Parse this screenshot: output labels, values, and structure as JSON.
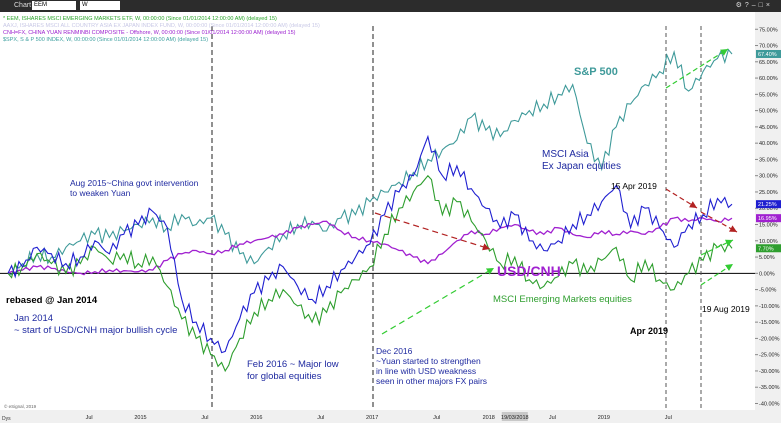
{
  "window": {
    "title": "Chart",
    "symbol": "EEM",
    "interval": "W",
    "toolbar_icons": [
      "settings-icon",
      "help-icon",
      "minimize-icon",
      "maximize-icon",
      "close-icon"
    ]
  },
  "legend": [
    {
      "text": "* EEM, ISHARES MSCI EMERGING MARKETS ETF, W, 00:00:00 (Since 01/01/2014 12:00:00 AM) (delayed 15)",
      "color": "#2aa52a"
    },
    {
      "text": "AAXJ, ISHARES MSCI ALL COUNTRY ASIA EX JAPAN INDEX FUND, W, 00:00:00 (Since 01/01/2014 12:00:00 AM) (delayed 15)",
      "color": "#c8c8e6"
    },
    {
      "text": "CNH=FX, CHINA YUAN RENMINBI COMPOSITE - Offshore, W, 00:00:00 (Since 01/01/2014 12:00:00 AM) (delayed 15)",
      "color": "#9b1fcf"
    },
    {
      "text": "$SPX, S & P 500 INDEX, W, 00:00:00 (Since 01/01/2014 12:00:00 AM) (delayed 15)",
      "color": "#3fa0a0"
    }
  ],
  "annotations": {
    "aug2015": [
      "Aug 2015~China govt intervention",
      "to weaken Yuan"
    ],
    "rebased": "rebased @ Jan 2014",
    "jan2014": [
      "Jan 2014",
      "~ start of USD/CNH major bullish cycle"
    ],
    "feb2016": [
      "Feb 2016 ~ Major low",
      "for global equities"
    ],
    "dec2016": [
      "Dec 2016",
      "~Yuan started to strengthen",
      "in line with USD weakness",
      "seen in other majors FX pairs"
    ],
    "msci_asia": [
      "MSCI Asia",
      "Ex Japan equities"
    ],
    "sp500": "S&P 500",
    "usdcnh": "USD/CNH",
    "msci_em": "MSCI Emerging Markets equities",
    "apr15_2019": "15 Apr 2019",
    "apr2019": "Apr 2019",
    "aug19_2019": "19 Aug 2019",
    "copyright": "© eSignal, 2019",
    "corner": "Dys"
  },
  "colors": {
    "sp500": "#3f9a9a",
    "asia": "#1f1fd0",
    "em": "#2e9e2e",
    "cnh": "#a020d0",
    "annotation_blue": "#1f2aa0",
    "annotation_green": "#2e9e2e",
    "arrow_red": "#b22222",
    "arrow_green": "#33cc33"
  },
  "chart_data": {
    "type": "line",
    "title": "",
    "xlabel": "",
    "ylabel": "",
    "x_ticks": [
      "Jul",
      "2015",
      "Jul",
      "2016",
      "Jul",
      "2017",
      "Jul",
      "2018",
      "19/03/2018",
      "Jul",
      "2019",
      "Jul"
    ],
    "ylim": [
      -42,
      76
    ],
    "y_ticks": [
      "75.00%",
      "70.00%",
      "65.00%",
      "60.00%",
      "55.00%",
      "50.00%",
      "45.00%",
      "40.00%",
      "35.00%",
      "30.00%",
      "25.00%",
      "20.00%",
      "15.00%",
      "10.00%",
      "5.00%",
      "0.00%",
      "-5.00%",
      "-10.00%",
      "-15.00%",
      "-20.00%",
      "-25.00%",
      "-30.00%",
      "-35.00%",
      "-40.00%"
    ],
    "last_value_badges": [
      {
        "text": "67.40%",
        "series": "S&P 500"
      },
      {
        "text": "21.25%",
        "series": "MSCI Asia Ex Japan equities"
      },
      {
        "text": "16.95%",
        "series": "USD/CNH"
      },
      {
        "text": "7.70%",
        "series": "MSCI Emerging Markets equities"
      }
    ],
    "series": [
      {
        "name": "S&P 500",
        "color": "#3f9a9a",
        "points": [
          [
            0,
            0
          ],
          [
            0.02,
            3
          ],
          [
            0.04,
            6
          ],
          [
            0.06,
            5
          ],
          [
            0.08,
            8
          ],
          [
            0.1,
            10
          ],
          [
            0.12,
            12
          ],
          [
            0.14,
            11
          ],
          [
            0.16,
            13
          ],
          [
            0.18,
            15
          ],
          [
            0.2,
            17
          ],
          [
            0.22,
            14
          ],
          [
            0.24,
            18
          ],
          [
            0.26,
            15
          ],
          [
            0.28,
            17
          ],
          [
            0.3,
            12
          ],
          [
            0.32,
            6
          ],
          [
            0.34,
            3
          ],
          [
            0.36,
            8
          ],
          [
            0.38,
            12
          ],
          [
            0.4,
            15
          ],
          [
            0.42,
            16
          ],
          [
            0.44,
            13
          ],
          [
            0.46,
            17
          ],
          [
            0.48,
            18
          ],
          [
            0.5,
            22
          ],
          [
            0.52,
            25
          ],
          [
            0.54,
            28
          ],
          [
            0.56,
            31
          ],
          [
            0.58,
            35
          ],
          [
            0.6,
            38
          ],
          [
            0.62,
            41
          ],
          [
            0.64,
            48
          ],
          [
            0.66,
            44
          ],
          [
            0.68,
            42
          ],
          [
            0.7,
            47
          ],
          [
            0.72,
            50
          ],
          [
            0.74,
            52
          ],
          [
            0.76,
            55
          ],
          [
            0.78,
            58
          ],
          [
            0.8,
            40
          ],
          [
            0.82,
            32
          ],
          [
            0.84,
            45
          ],
          [
            0.86,
            52
          ],
          [
            0.88,
            58
          ],
          [
            0.9,
            62
          ],
          [
            0.92,
            68
          ],
          [
            0.94,
            56
          ],
          [
            0.96,
            62
          ],
          [
            0.98,
            66
          ],
          [
            1.0,
            67.4
          ]
        ]
      },
      {
        "name": "MSCI Asia Ex Japan equities",
        "color": "#1f1fd0",
        "points": [
          [
            0,
            0
          ],
          [
            0.02,
            2
          ],
          [
            0.04,
            8
          ],
          [
            0.06,
            6
          ],
          [
            0.08,
            3
          ],
          [
            0.1,
            5
          ],
          [
            0.12,
            10
          ],
          [
            0.14,
            6
          ],
          [
            0.16,
            12
          ],
          [
            0.18,
            15
          ],
          [
            0.2,
            19
          ],
          [
            0.22,
            14
          ],
          [
            0.24,
            -8
          ],
          [
            0.26,
            -15
          ],
          [
            0.28,
            -20
          ],
          [
            0.3,
            -24
          ],
          [
            0.32,
            -14
          ],
          [
            0.34,
            -6
          ],
          [
            0.36,
            -2
          ],
          [
            0.38,
            2
          ],
          [
            0.4,
            -4
          ],
          [
            0.42,
            -8
          ],
          [
            0.44,
            -4
          ],
          [
            0.46,
            1
          ],
          [
            0.48,
            5
          ],
          [
            0.5,
            9
          ],
          [
            0.52,
            18
          ],
          [
            0.54,
            25
          ],
          [
            0.56,
            30
          ],
          [
            0.58,
            42
          ],
          [
            0.6,
            30
          ],
          [
            0.62,
            33
          ],
          [
            0.64,
            26
          ],
          [
            0.66,
            20
          ],
          [
            0.68,
            14
          ],
          [
            0.7,
            18
          ],
          [
            0.72,
            10
          ],
          [
            0.74,
            7
          ],
          [
            0.76,
            10
          ],
          [
            0.78,
            15
          ],
          [
            0.8,
            18
          ],
          [
            0.82,
            22
          ],
          [
            0.84,
            27
          ],
          [
            0.86,
            14
          ],
          [
            0.88,
            20
          ],
          [
            0.9,
            14
          ],
          [
            0.92,
            8
          ],
          [
            0.94,
            15
          ],
          [
            0.96,
            18
          ],
          [
            0.98,
            23
          ],
          [
            1.0,
            21.25
          ]
        ]
      },
      {
        "name": "USD/CNH",
        "color": "#a020d0",
        "points": [
          [
            0,
            0
          ],
          [
            0.02,
            1
          ],
          [
            0.04,
            2
          ],
          [
            0.06,
            1.5
          ],
          [
            0.08,
            0.5
          ],
          [
            0.1,
            0
          ],
          [
            0.12,
            0.5
          ],
          [
            0.14,
            1
          ],
          [
            0.16,
            0.8
          ],
          [
            0.18,
            0.5
          ],
          [
            0.2,
            1
          ],
          [
            0.22,
            4
          ],
          [
            0.24,
            6
          ],
          [
            0.26,
            7
          ],
          [
            0.28,
            6
          ],
          [
            0.3,
            7
          ],
          [
            0.32,
            9
          ],
          [
            0.34,
            10
          ],
          [
            0.36,
            11
          ],
          [
            0.38,
            12
          ],
          [
            0.4,
            14
          ],
          [
            0.42,
            15
          ],
          [
            0.44,
            16
          ],
          [
            0.46,
            13
          ],
          [
            0.48,
            11
          ],
          [
            0.5,
            10
          ],
          [
            0.52,
            9
          ],
          [
            0.54,
            7
          ],
          [
            0.56,
            5
          ],
          [
            0.58,
            3
          ],
          [
            0.6,
            6
          ],
          [
            0.62,
            10
          ],
          [
            0.64,
            13
          ],
          [
            0.66,
            12
          ],
          [
            0.68,
            14
          ],
          [
            0.7,
            15
          ],
          [
            0.72,
            13
          ],
          [
            0.74,
            12
          ],
          [
            0.76,
            14
          ],
          [
            0.78,
            12
          ],
          [
            0.8,
            11
          ],
          [
            0.82,
            13
          ],
          [
            0.84,
            12
          ],
          [
            0.86,
            13
          ],
          [
            0.88,
            12
          ],
          [
            0.9,
            14
          ],
          [
            0.92,
            17
          ],
          [
            0.94,
            16
          ],
          [
            0.96,
            17
          ],
          [
            0.98,
            16
          ],
          [
            1.0,
            16.95
          ]
        ]
      },
      {
        "name": "MSCI Emerging Markets equities",
        "color": "#2e9e2e",
        "points": [
          [
            0,
            0
          ],
          [
            0.02,
            2
          ],
          [
            0.04,
            6
          ],
          [
            0.06,
            3
          ],
          [
            0.08,
            0
          ],
          [
            0.1,
            3
          ],
          [
            0.12,
            8
          ],
          [
            0.14,
            4
          ],
          [
            0.16,
            6
          ],
          [
            0.18,
            3
          ],
          [
            0.2,
            5
          ],
          [
            0.22,
            -4
          ],
          [
            0.24,
            -14
          ],
          [
            0.26,
            -20
          ],
          [
            0.28,
            -25
          ],
          [
            0.3,
            -30
          ],
          [
            0.32,
            -20
          ],
          [
            0.34,
            -12
          ],
          [
            0.36,
            -8
          ],
          [
            0.38,
            -5
          ],
          [
            0.4,
            -10
          ],
          [
            0.42,
            -15
          ],
          [
            0.44,
            -12
          ],
          [
            0.46,
            -6
          ],
          [
            0.48,
            -2
          ],
          [
            0.5,
            2
          ],
          [
            0.52,
            12
          ],
          [
            0.54,
            20
          ],
          [
            0.56,
            25
          ],
          [
            0.58,
            30
          ],
          [
            0.6,
            18
          ],
          [
            0.62,
            22
          ],
          [
            0.64,
            16
          ],
          [
            0.66,
            10
          ],
          [
            0.68,
            3
          ],
          [
            0.7,
            5
          ],
          [
            0.72,
            -2
          ],
          [
            0.74,
            -4
          ],
          [
            0.76,
            -1
          ],
          [
            0.78,
            3
          ],
          [
            0.8,
            0
          ],
          [
            0.82,
            4
          ],
          [
            0.84,
            8
          ],
          [
            0.86,
            -2
          ],
          [
            0.88,
            4
          ],
          [
            0.9,
            -2
          ],
          [
            0.92,
            -5
          ],
          [
            0.94,
            0
          ],
          [
            0.96,
            4
          ],
          [
            0.98,
            8
          ],
          [
            1.0,
            7.7
          ]
        ]
      }
    ]
  }
}
